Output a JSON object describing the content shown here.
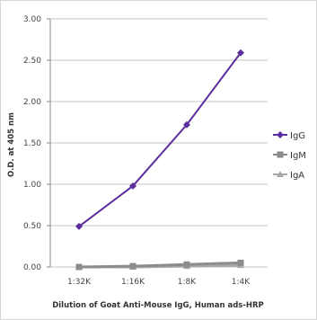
{
  "chart_data": {
    "type": "line",
    "categories": [
      "1:32K",
      "1:16K",
      "1:8K",
      "1:4K"
    ],
    "series": [
      {
        "name": "IgG",
        "values": [
          0.49,
          0.98,
          1.72,
          2.59
        ],
        "color": "#5b2f9e",
        "marker": "diamond"
      },
      {
        "name": "IgM",
        "values": [
          0.0,
          0.01,
          0.03,
          0.05
        ],
        "color": "#8c8c8c",
        "marker": "square"
      },
      {
        "name": "IgA",
        "values": [
          0.0,
          0.0,
          0.01,
          0.02
        ],
        "color": "#a8a8a8",
        "marker": "triangle"
      }
    ],
    "yticks": [
      "3.00",
      "2.50",
      "2.00",
      "1.50",
      "1.00",
      "0.50",
      "0.00"
    ],
    "ytick_values": [
      3.0,
      2.5,
      2.0,
      1.5,
      1.0,
      0.5,
      0.0
    ],
    "ylim": [
      0,
      3.0
    ],
    "xlabel": "Dilution of Goat Anti-Mouse IgG, Human ads-HRP",
    "ylabel": "O.D. at 405 nm",
    "grid": true,
    "legend_position": "right"
  }
}
